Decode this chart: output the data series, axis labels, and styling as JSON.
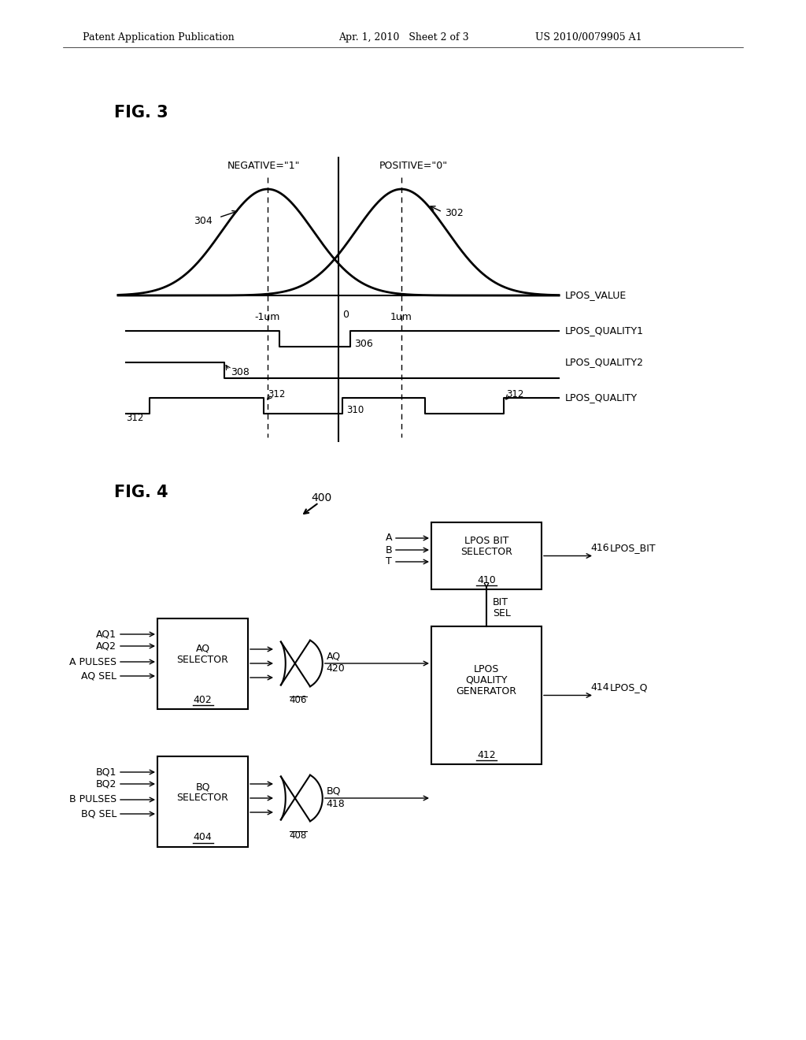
{
  "bg_color": "#ffffff",
  "header_left": "Patent Application Publication",
  "header_mid": "Apr. 1, 2010   Sheet 2 of 3",
  "header_right": "US 2010/0079905 A1",
  "fig3_label": "FIG. 3",
  "fig4_label": "FIG. 4",
  "neg_label": "NEGATIVE=\"1\"",
  "pos_label": "POSITIVE=\"0\"",
  "lpos_value": "LPOS_VALUE",
  "lpos_quality1": "LPOS_QUALITY1",
  "lpos_quality2": "LPOS_QUALITY2",
  "lpos_quality": "LPOS_QUALITY",
  "label_304": "304",
  "label_302": "302",
  "label_neg1um": "-1um",
  "label_0": "0",
  "label_1um": "1um",
  "label_306": "306",
  "label_308": "308",
  "label_310": "310",
  "label_312": "312",
  "label_400": "400",
  "label_aq1": "AQ1",
  "label_aq2": "AQ2",
  "label_apulses": "A PULSES",
  "label_aqsel": "AQ SEL",
  "label_bq1": "BQ1",
  "label_bq2": "BQ2",
  "label_bpulses": "B PULSES",
  "label_bqsel": "BQ SEL",
  "label_a": "A",
  "label_b": "B",
  "label_t": "T",
  "label_406": "406",
  "label_408": "408",
  "label_aq": "AQ",
  "label_420": "420",
  "label_bq": "BQ",
  "label_418": "418",
  "label_416": "416",
  "lpos_bit": "LPOS_BIT",
  "label_414": "414",
  "lpos_q": "LPOS_Q",
  "bit_sel": "BIT\nSEL",
  "box_aq_text1": "AQ",
  "box_aq_text2": "SELECTOR",
  "box_aq_num": "402",
  "box_bq_text1": "BQ",
  "box_bq_text2": "SELECTOR",
  "box_bq_num": "404",
  "box_lbs_text1": "LPOS BIT",
  "box_lbs_text2": "SELECTOR",
  "box_lbs_num": "410",
  "box_lqg_text1": "LPOS",
  "box_lqg_text2": "QUALITY",
  "box_lqg_text3": "GENERATOR",
  "box_lqg_num": "412"
}
